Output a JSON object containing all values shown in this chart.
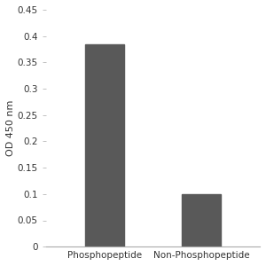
{
  "categories": [
    "Phosphopeptide",
    "Non-Phosphopeptide"
  ],
  "values": [
    0.385,
    0.1
  ],
  "bar_color": "#595959",
  "bar_width": 0.4,
  "ylabel": "OD 450 nm",
  "ylim": [
    0,
    0.45
  ],
  "yticks": [
    0,
    0.05,
    0.1,
    0.15,
    0.2,
    0.25,
    0.3,
    0.35,
    0.4,
    0.45
  ],
  "ytick_labels": [
    "0",
    "0.05",
    "0.1",
    "0.15",
    "0.2",
    "0.25",
    "0.3",
    "0.35",
    "0.4",
    "0.45"
  ],
  "background_color": "#ffffff",
  "ylabel_fontsize": 8,
  "tick_fontsize": 7.5,
  "xlabel_fontsize": 7.5,
  "figsize": [
    3.0,
    3.0
  ],
  "dpi": 100
}
